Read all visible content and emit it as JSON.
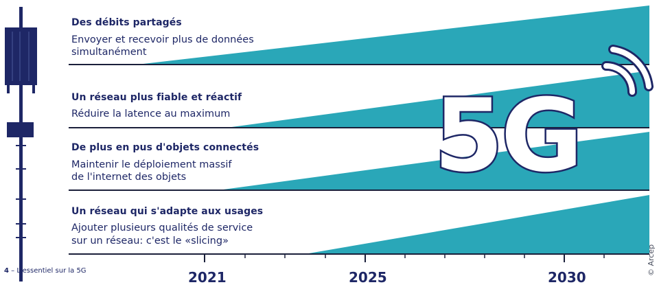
{
  "rows": [
    {
      "title": "Des débits partagés",
      "desc_line1": "Envoyer et recevoir plus de données",
      "desc_line2": "simultanément"
    },
    {
      "title": "Un réseau plus fiable et réactif",
      "desc_line1": "Réduire la latence au maximum",
      "desc_line2": ""
    },
    {
      "title": "De plus en pus d'objets connectés",
      "desc_line1": "Maintenir le déploiement massif",
      "desc_line2": "de l'internet des objets"
    },
    {
      "title": "Un réseau qui s'adapte aux usages",
      "desc_line1": "Ajouter plusieurs qualités de service",
      "desc_line2": "sur un réseau: c'est le «slicing»"
    }
  ],
  "logo_text": "5G",
  "timeline": {
    "years": [
      "2021",
      "2025",
      "2030"
    ]
  },
  "caption": {
    "page_number": "4",
    "text": " – L'essentiel sur la 5G"
  },
  "credit": "© Arcep",
  "colors": {
    "teal": "#2aa7b8",
    "navy": "#1e2766",
    "line": "#1a1f3a"
  }
}
